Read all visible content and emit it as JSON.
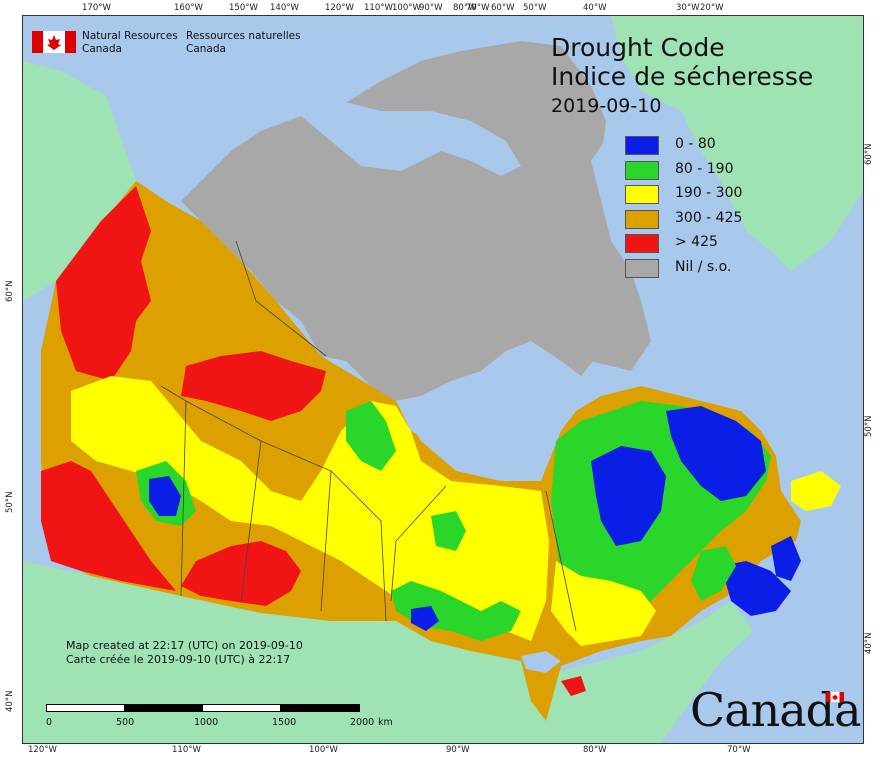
{
  "title": {
    "en": "Drought Code",
    "fr": "Indice de sécheresse",
    "date": "2019-09-10"
  },
  "agency": {
    "en_line1": "Natural Resources",
    "en_line2": "Canada",
    "fr_line1": "Ressources naturelles",
    "fr_line2": "Canada"
  },
  "legend": [
    {
      "label": "0 - 80",
      "color": "#0a1ee6"
    },
    {
      "label": "80 - 190",
      "color": "#2ad62a"
    },
    {
      "label": "190 - 300",
      "color": "#ffff00"
    },
    {
      "label": "300 - 425",
      "color": "#dca000"
    },
    {
      "label": "> 425",
      "color": "#f01414"
    },
    {
      "label": "Nil / s.o.",
      "color": "#a8a8a8"
    }
  ],
  "credit": {
    "en": "Map created at 22:17 (UTC) on 2019-09-10",
    "fr": "Carte créée le 2019-09-10 (UTC) à 22:17"
  },
  "scale": {
    "labels": [
      "0",
      "500",
      "1000",
      "1500",
      "2000"
    ],
    "unit": "km"
  },
  "wordmark": "Canada",
  "top_ticks": [
    "170°W",
    "160°W",
    "150°W",
    "140°W",
    "120°W",
    "110°W",
    "100°W",
    "90°W",
    "80°W",
    "70°W",
    "60°W",
    "50°W",
    "40°W",
    "30°W",
    "20°W"
  ],
  "bottom_ticks": [
    "120°W",
    "110°W",
    "100°W",
    "90°W",
    "80°W",
    "70°W"
  ],
  "left_ticks": [
    "60°N",
    "50°N",
    "40°N"
  ],
  "right_ticks": [
    "60°N",
    "50°N",
    "40°N"
  ],
  "colors": {
    "ocean": "#a9c9ec",
    "foreign_land": "#9fe3b4",
    "nil": "#a8a8a8"
  }
}
